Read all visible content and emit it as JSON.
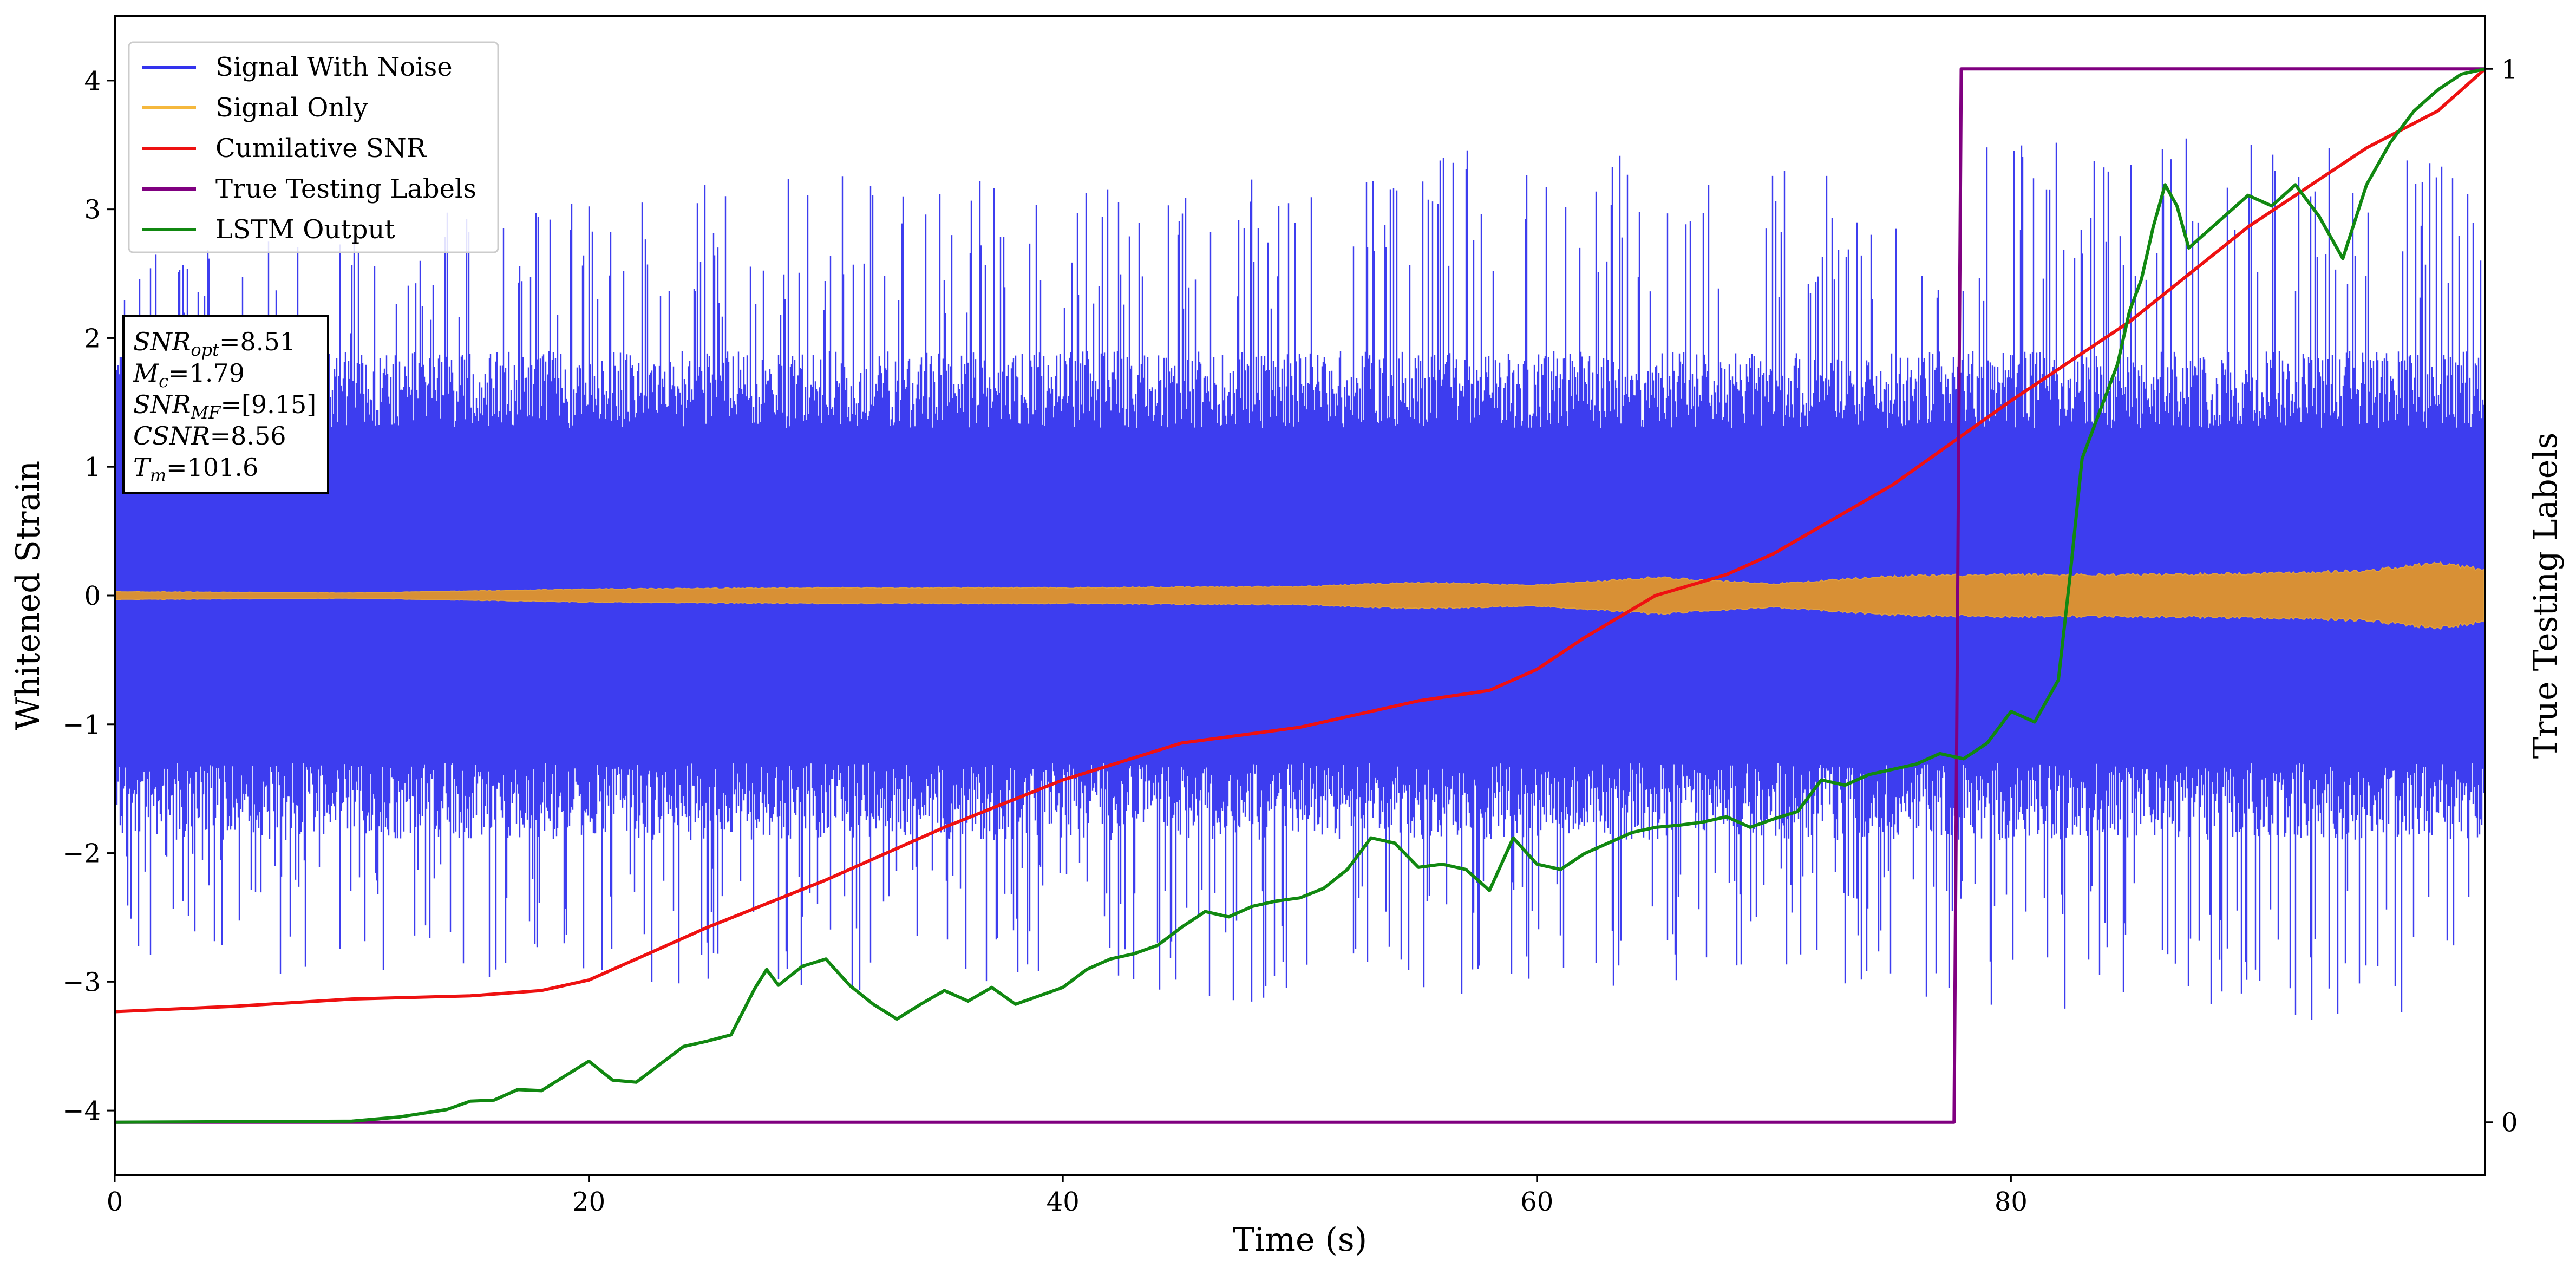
{
  "chart_data": {
    "type": "line",
    "title": "",
    "xlabel": "Time (s)",
    "ylabel": "Whitened Strain",
    "y2label": "True Testing Labels",
    "xlim": [
      0,
      100
    ],
    "ylim": [
      -4.5,
      4.5
    ],
    "y2lim": [
      -0.05,
      1.05
    ],
    "x_ticks": [
      0,
      20,
      40,
      60,
      80
    ],
    "y_ticks": [
      -4,
      -3,
      -2,
      -1,
      0,
      1,
      2,
      3,
      4
    ],
    "y2_ticks": [
      0,
      1
    ],
    "grid": false,
    "legend_position": "top-left",
    "legend": [
      {
        "name": "Signal With Noise",
        "color": "#3333ee"
      },
      {
        "name": "Signal Only",
        "color": "#f5b83d"
      },
      {
        "name": "Cumilative SNR",
        "color": "#ee1111"
      },
      {
        "name": "True Testing Labels",
        "color": "#800080"
      },
      {
        "name": "LSTM Output",
        "color": "#118811"
      }
    ],
    "series": [
      {
        "name": "Signal With Noise",
        "axis": "left",
        "color": "#3333ee",
        "kind": "dense noise band",
        "envelope": {
          "x": [
            0,
            10,
            20,
            30,
            40,
            50,
            60,
            70,
            80,
            90,
            100
          ],
          "upper": [
            2.6,
            2.9,
            3.1,
            3.3,
            3.2,
            3.3,
            3.6,
            3.4,
            3.5,
            3.6,
            3.4
          ],
          "lower": [
            -2.8,
            -3.0,
            -3.0,
            -3.1,
            -3.0,
            -3.2,
            -3.1,
            -3.0,
            -3.2,
            -3.3,
            -3.3
          ],
          "band": 1.3
        }
      },
      {
        "name": "Signal Only",
        "axis": "left",
        "color": "#f5b83d",
        "kind": "chirp envelope",
        "envelope": {
          "x": [
            0,
            10,
            20,
            30,
            40,
            50,
            55,
            60,
            65,
            70,
            75,
            80,
            85,
            90,
            95,
            98,
            100
          ],
          "amplitude": [
            0.03,
            0.02,
            0.05,
            0.06,
            0.06,
            0.07,
            0.1,
            0.08,
            0.14,
            0.09,
            0.15,
            0.16,
            0.16,
            0.17,
            0.19,
            0.25,
            0.2
          ]
        }
      },
      {
        "name": "Cumilative SNR",
        "axis": "right",
        "color": "#ee1111",
        "x": [
          0,
          5,
          10,
          15,
          18,
          20,
          22,
          25,
          30,
          35,
          40,
          45,
          50,
          52,
          55,
          58,
          60,
          62,
          65,
          68,
          70,
          75,
          80,
          85,
          90,
          95,
          98,
          100
        ],
        "y": [
          0.105,
          0.11,
          0.117,
          0.12,
          0.125,
          0.135,
          0.155,
          0.185,
          0.23,
          0.28,
          0.325,
          0.36,
          0.375,
          0.385,
          0.4,
          0.41,
          0.43,
          0.46,
          0.5,
          0.52,
          0.54,
          0.605,
          0.685,
          0.76,
          0.85,
          0.925,
          0.96,
          1.0
        ]
      },
      {
        "name": "True Testing Labels",
        "axis": "right",
        "color": "#800080",
        "x": [
          0,
          77.6,
          77.9,
          100
        ],
        "y": [
          0,
          0,
          1,
          1
        ]
      },
      {
        "name": "LSTM Output",
        "axis": "right",
        "color": "#118811",
        "x": [
          0,
          10,
          12,
          14,
          15,
          16,
          17,
          18,
          19,
          20,
          21,
          22,
          23,
          24,
          25,
          26,
          27,
          27.5,
          28,
          29,
          30,
          31,
          32,
          33,
          34,
          35,
          36,
          37,
          38,
          39,
          40,
          41,
          42,
          43,
          44,
          45,
          46,
          47,
          48,
          49,
          50,
          51,
          52,
          53,
          54,
          55,
          56,
          57,
          58,
          59,
          60,
          61,
          62,
          63,
          64,
          65,
          66,
          67,
          68,
          69,
          70,
          71,
          72,
          73,
          74,
          75,
          76,
          77,
          78,
          79,
          80,
          81,
          82,
          82.5,
          83,
          83.5,
          84,
          84.5,
          85,
          85.5,
          86,
          86.5,
          87,
          87.5,
          88,
          89,
          90,
          91,
          92,
          93,
          94,
          95,
          96,
          97,
          98,
          99,
          100
        ],
        "y": [
          0,
          0.001,
          0.005,
          0.012,
          0.02,
          0.021,
          0.031,
          0.03,
          0.044,
          0.058,
          0.04,
          0.038,
          0.055,
          0.072,
          0.077,
          0.083,
          0.127,
          0.145,
          0.13,
          0.148,
          0.155,
          0.13,
          0.112,
          0.098,
          0.112,
          0.125,
          0.115,
          0.128,
          0.112,
          0.12,
          0.128,
          0.145,
          0.155,
          0.16,
          0.168,
          0.185,
          0.2,
          0.195,
          0.205,
          0.21,
          0.213,
          0.222,
          0.24,
          0.27,
          0.265,
          0.242,
          0.245,
          0.24,
          0.22,
          0.27,
          0.245,
          0.24,
          0.255,
          0.265,
          0.275,
          0.28,
          0.282,
          0.285,
          0.29,
          0.28,
          0.288,
          0.295,
          0.325,
          0.32,
          0.33,
          0.335,
          0.34,
          0.35,
          0.345,
          0.36,
          0.39,
          0.38,
          0.42,
          0.52,
          0.63,
          0.66,
          0.69,
          0.72,
          0.77,
          0.8,
          0.85,
          0.89,
          0.87,
          0.83,
          0.84,
          0.86,
          0.88,
          0.87,
          0.89,
          0.86,
          0.82,
          0.89,
          0.93,
          0.96,
          0.98,
          0.995,
          1.0
        ]
      }
    ],
    "annotation_lines": [
      {
        "label": "SNR",
        "subscript": "opt",
        "value": "=8.51"
      },
      {
        "label": "M",
        "subscript": "c",
        "value": "=1.79"
      },
      {
        "label": "SNR",
        "subscript": "MF",
        "value": "=[9.15]"
      },
      {
        "label": "CSNR",
        "subscript": "",
        "value": "=8.56"
      },
      {
        "label": "T",
        "subscript": "m",
        "value": "=101.6"
      }
    ]
  }
}
